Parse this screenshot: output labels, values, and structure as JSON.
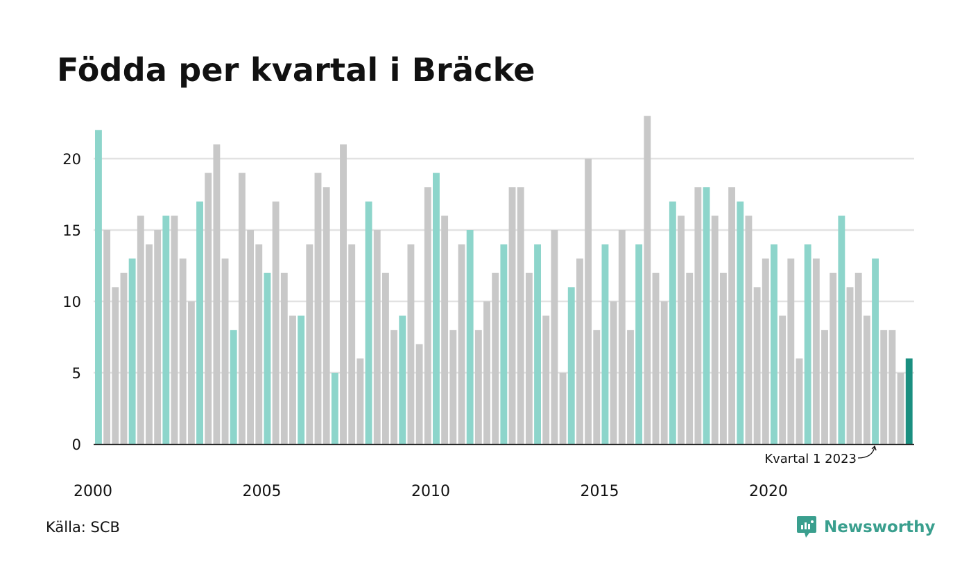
{
  "title": "Födda per kvartal i Bräcke",
  "source": "Källa: SCB",
  "brand": {
    "name": "Newsworthy",
    "icon": "newsworthy-logo-icon",
    "color": "#3a9f8e"
  },
  "annotation": {
    "text": "Kvartal 1 2023",
    "target_index": 92
  },
  "colors": {
    "q1": "#8dd5cb",
    "other": "#c8c8c8",
    "latest": "#1a8f80",
    "grid": "#e2e2e2",
    "axis": "#222222"
  },
  "chart_data": {
    "type": "bar",
    "title": "Födda per kvartal i Bräcke",
    "xlabel": "",
    "ylabel": "",
    "ylim": [
      0,
      23
    ],
    "yticks": [
      0,
      5,
      10,
      15,
      20
    ],
    "xtick_labels": [
      "2000",
      "2005",
      "2010",
      "2015",
      "2020"
    ],
    "grid": true,
    "start_year": 2000,
    "highlight": "first quarter of each year; latest quarter emphasized",
    "categories": [
      "2000 K1",
      "2000 K2",
      "2000 K3",
      "2000 K4",
      "2001 K1",
      "2001 K2",
      "2001 K3",
      "2001 K4",
      "2002 K1",
      "2002 K2",
      "2002 K3",
      "2002 K4",
      "2003 K1",
      "2003 K2",
      "2003 K3",
      "2003 K4",
      "2004 K1",
      "2004 K2",
      "2004 K3",
      "2004 K4",
      "2005 K1",
      "2005 K2",
      "2005 K3",
      "2005 K4",
      "2006 K1",
      "2006 K2",
      "2006 K3",
      "2006 K4",
      "2007 K1",
      "2007 K2",
      "2007 K3",
      "2007 K4",
      "2008 K1",
      "2008 K2",
      "2008 K3",
      "2008 K4",
      "2009 K1",
      "2009 K2",
      "2009 K3",
      "2009 K4",
      "2010 K1",
      "2010 K2",
      "2010 K3",
      "2010 K4",
      "2011 K1",
      "2011 K2",
      "2011 K3",
      "2011 K4",
      "2012 K1",
      "2012 K2",
      "2012 K3",
      "2012 K4",
      "2013 K1",
      "2013 K2",
      "2013 K3",
      "2013 K4",
      "2014 K1",
      "2014 K2",
      "2014 K3",
      "2014 K4",
      "2015 K1",
      "2015 K2",
      "2015 K3",
      "2015 K4",
      "2016 K1",
      "2016 K2",
      "2016 K3",
      "2016 K4",
      "2017 K1",
      "2017 K2",
      "2017 K3",
      "2017 K4",
      "2018 K1",
      "2018 K2",
      "2018 K3",
      "2018 K4",
      "2019 K1",
      "2019 K2",
      "2019 K3",
      "2019 K4",
      "2020 K1",
      "2020 K2",
      "2020 K3",
      "2020 K4",
      "2021 K1",
      "2021 K2",
      "2021 K3",
      "2021 K4",
      "2022 K1",
      "2022 K2",
      "2022 K3",
      "2022 K4",
      "2023 K1",
      "2023 K2",
      "2023 K3",
      "2023 K4",
      "2024 K1"
    ],
    "values": [
      22,
      15,
      11,
      12,
      13,
      16,
      14,
      15,
      16,
      16,
      13,
      10,
      17,
      19,
      21,
      13,
      8,
      19,
      15,
      14,
      12,
      17,
      12,
      9,
      9,
      14,
      19,
      18,
      5,
      21,
      14,
      6,
      17,
      15,
      12,
      8,
      9,
      14,
      7,
      18,
      19,
      16,
      8,
      14,
      15,
      8,
      10,
      12,
      14,
      18,
      18,
      12,
      14,
      9,
      15,
      5,
      11,
      13,
      20,
      8,
      14,
      10,
      15,
      8,
      14,
      23,
      12,
      10,
      17,
      16,
      12,
      18,
      18,
      16,
      12,
      18,
      17,
      16,
      11,
      13,
      14,
      9,
      13,
      6,
      14,
      13,
      8,
      12,
      16,
      11,
      12,
      9,
      13,
      8,
      8,
      5,
      6
    ]
  }
}
